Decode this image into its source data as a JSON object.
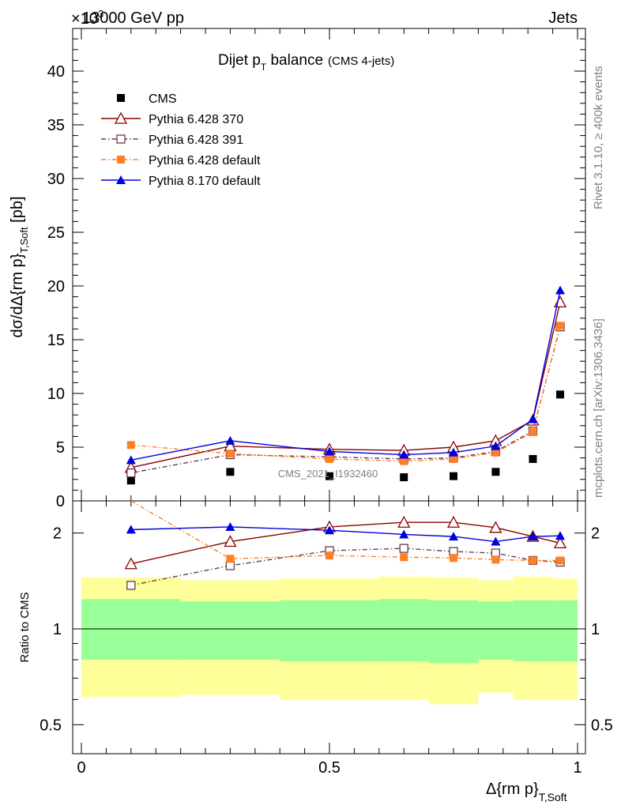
{
  "header": {
    "exponent_label": "×10",
    "exponent_sup": "3",
    "beam_label": "13000 GeV pp",
    "process_label": "Jets"
  },
  "title": {
    "main": "Dijet p",
    "main_sub": "T",
    "main_tail": " balance",
    "note": "(CMS 4-jets)"
  },
  "watermark": "CMS_2021_I1932460",
  "side_text": {
    "rivet": "Rivet 3.1.10, ≥ 400k events",
    "mcplots": "mcplots.cern.ch [arXiv:1306.3436]"
  },
  "axes": {
    "ylabel_main": "dσ/dΔ{rm p}",
    "ylabel_main_sub": "T,Soft",
    "ylabel_main_unit": " [pb]",
    "ylabel_ratio": "Ratio to CMS",
    "xlabel": "Δ{rm p}",
    "xlabel_sub": "T,Soft",
    "x_ticks": [
      "0",
      "0.5",
      "1"
    ],
    "y_ticks_main": [
      "0",
      "5",
      "10",
      "15",
      "20",
      "25",
      "30",
      "35",
      "40"
    ],
    "y_ticks_ratio": [
      "0.5",
      "1",
      "2"
    ]
  },
  "legend": [
    {
      "label": "CMS",
      "color": "#000000",
      "marker": "square-filled",
      "line": "none"
    },
    {
      "label": "Pythia 6.428 370",
      "color": "#8b0000",
      "marker": "triangle-open",
      "line": "solid"
    },
    {
      "label": "Pythia 6.428 391",
      "color": "#6b3a4a",
      "marker": "square-open",
      "line": "dashdot"
    },
    {
      "label": "Pythia 6.428 default",
      "color": "#ff7f27",
      "marker": "square-filled",
      "line": "dashdot"
    },
    {
      "label": "Pythia 8.170 default",
      "color": "#0000e0",
      "marker": "triangle-filled",
      "line": "solid"
    }
  ],
  "chart_data": [
    {
      "type": "line",
      "panel": "main",
      "title": "Dijet pT balance (CMS 4-jets)",
      "xlabel": "Δ{rm p}T,Soft",
      "ylabel": "dσ/dΔ{rm p}T,Soft [pb]",
      "y_scale_factor": "×10^3",
      "xlim": [
        0,
        1
      ],
      "ylim": [
        0,
        44
      ],
      "x": [
        0.1,
        0.3,
        0.5,
        0.65,
        0.75,
        0.835,
        0.91,
        0.965
      ],
      "series": [
        {
          "name": "CMS",
          "values": [
            1.9,
            2.7,
            2.3,
            2.2,
            2.3,
            2.7,
            3.9,
            9.9
          ]
        },
        {
          "name": "Pythia 6.428 370",
          "values": [
            3.1,
            5.1,
            4.8,
            4.7,
            5.0,
            5.6,
            7.5,
            18.5
          ]
        },
        {
          "name": "Pythia 6.428 391",
          "values": [
            2.6,
            4.3,
            4.1,
            3.9,
            4.0,
            4.6,
            6.5,
            16.2
          ]
        },
        {
          "name": "Pythia 6.428 default",
          "values": [
            5.2,
            4.4,
            3.9,
            3.7,
            3.9,
            4.5,
            6.4,
            16.3
          ]
        },
        {
          "name": "Pythia 8.170 default",
          "values": [
            3.8,
            5.6,
            4.6,
            4.3,
            4.5,
            5.1,
            7.6,
            19.6
          ]
        }
      ]
    },
    {
      "type": "line",
      "panel": "ratio",
      "ylabel": "Ratio to CMS",
      "xlabel": "Δ{rm p}T,Soft",
      "xlim": [
        0,
        1
      ],
      "ylim": [
        0.4,
        2.5
      ],
      "log_y": true,
      "x": [
        0.1,
        0.3,
        0.5,
        0.65,
        0.75,
        0.835,
        0.91,
        0.965
      ],
      "series": [
        {
          "name": "Pythia 6.428 370",
          "values": [
            1.6,
            1.88,
            2.09,
            2.16,
            2.16,
            2.08,
            1.95,
            1.86
          ]
        },
        {
          "name": "Pythia 6.428 391",
          "values": [
            1.37,
            1.58,
            1.76,
            1.79,
            1.75,
            1.73,
            1.64,
            1.62
          ]
        },
        {
          "name": "Pythia 6.428 default",
          "values": [
            2.85,
            1.66,
            1.7,
            1.68,
            1.67,
            1.65,
            1.64,
            1.64
          ]
        },
        {
          "name": "Pythia 8.170 default",
          "values": [
            2.05,
            2.09,
            2.04,
            1.98,
            1.95,
            1.88,
            1.95,
            1.96
          ]
        }
      ],
      "bands": {
        "x_edges": [
          0,
          0.2,
          0.4,
          0.6,
          0.7,
          0.8,
          0.87,
          0.95,
          1.0
        ],
        "green_low": [
          0.8,
          0.8,
          0.79,
          0.79,
          0.78,
          0.8,
          0.79,
          0.79
        ],
        "green_high": [
          1.24,
          1.22,
          1.23,
          1.24,
          1.23,
          1.22,
          1.23,
          1.23
        ],
        "yellow_low": [
          0.61,
          0.62,
          0.6,
          0.6,
          0.58,
          0.63,
          0.6,
          0.6
        ],
        "yellow_high": [
          1.45,
          1.42,
          1.44,
          1.46,
          1.45,
          1.42,
          1.46,
          1.44
        ]
      }
    }
  ]
}
